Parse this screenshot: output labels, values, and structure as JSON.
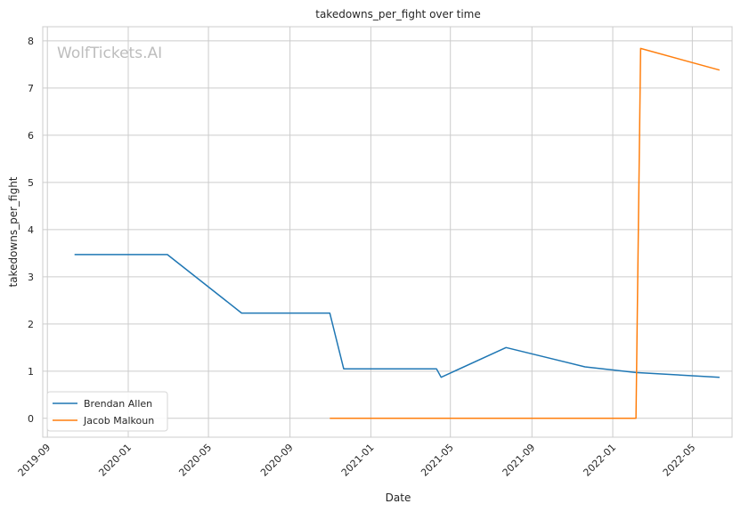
{
  "chart_data": {
    "type": "line",
    "title": "takedowns_per_fight over time",
    "xlabel": "Date",
    "ylabel": "takedowns_per_fight",
    "watermark": "WolfTickets.AI",
    "x_ticks": [
      "2019-09",
      "2020-01",
      "2020-05",
      "2020-09",
      "2021-01",
      "2021-05",
      "2021-09",
      "2022-01",
      "2022-05"
    ],
    "y_ticks": [
      "0",
      "1",
      "2",
      "3",
      "4",
      "5",
      "6",
      "7",
      "8"
    ],
    "xlim": [
      "2019-08-25",
      "2022-06-30"
    ],
    "ylim": [
      -0.4,
      8.3
    ],
    "grid": true,
    "legend_position": "lower-left",
    "series": [
      {
        "name": "Brendan Allen",
        "color": "#1f77b4",
        "points": [
          {
            "x": "2019-10-12",
            "y": 3.47
          },
          {
            "x": "2020-02-29",
            "y": 3.47
          },
          {
            "x": "2020-06-20",
            "y": 2.23
          },
          {
            "x": "2020-10-31",
            "y": 2.23
          },
          {
            "x": "2020-11-21",
            "y": 1.05
          },
          {
            "x": "2021-04-10",
            "y": 1.05
          },
          {
            "x": "2021-04-17",
            "y": 0.87
          },
          {
            "x": "2021-07-24",
            "y": 1.5
          },
          {
            "x": "2021-11-20",
            "y": 1.09
          },
          {
            "x": "2022-02-05",
            "y": 0.97
          },
          {
            "x": "2022-06-11",
            "y": 0.87
          }
        ]
      },
      {
        "name": "Jacob Malkoun",
        "color": "#ff7f0e",
        "points": [
          {
            "x": "2020-10-31",
            "y": 0.0
          },
          {
            "x": "2022-02-05",
            "y": 0.0
          },
          {
            "x": "2022-02-12",
            "y": 7.84
          },
          {
            "x": "2022-06-11",
            "y": 7.38
          }
        ]
      }
    ]
  }
}
